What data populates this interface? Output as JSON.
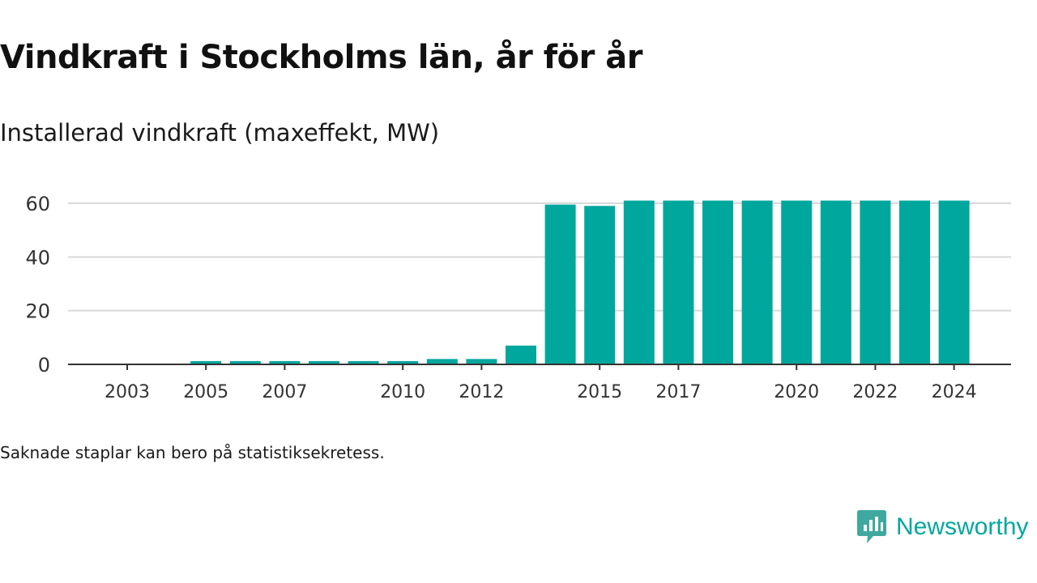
{
  "header": {
    "title": "Vindkraft i Stockholms län, år för år",
    "subtitle": "Installerad vindkraft (maxeffekt, MW)"
  },
  "footer": {
    "note": "Saknade staplar kan bero på statistiksekretess.",
    "brand": "Newsworthy"
  },
  "colors": {
    "bar": "#00a79d",
    "grid": "#d9d9d9",
    "axis": "#333333",
    "brand": "#00a79d"
  },
  "chart_data": {
    "type": "bar",
    "categories": [
      "2003",
      "2004",
      "2005",
      "2006",
      "2007",
      "2008",
      "2009",
      "2010",
      "2011",
      "2012",
      "2013",
      "2014",
      "2015",
      "2016",
      "2017",
      "2018",
      "2019",
      "2020",
      "2021",
      "2022",
      "2023",
      "2024"
    ],
    "values": [
      0,
      0,
      1.2,
      1.2,
      1.2,
      1.2,
      1.2,
      1.2,
      2,
      2,
      7,
      59.5,
      59,
      61,
      61,
      61,
      61,
      61,
      61,
      61,
      61,
      61
    ],
    "xticks": [
      "2003",
      "2005",
      "2007",
      "2010",
      "2012",
      "2015",
      "2017",
      "2020",
      "2022",
      "2024"
    ],
    "yticks": [
      0,
      20,
      40,
      60
    ],
    "ylim": [
      0,
      61
    ],
    "grid": true,
    "title": "Vindkraft i Stockholms län, år för år",
    "ylabel": "Installerad vindkraft (maxeffekt, MW)",
    "xlabel": ""
  }
}
